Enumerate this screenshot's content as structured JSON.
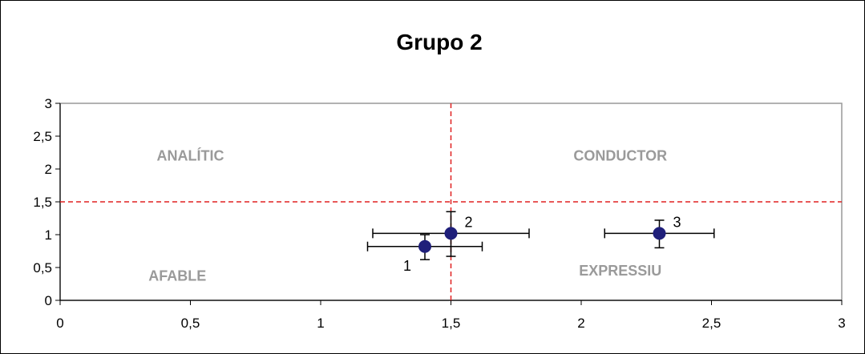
{
  "chart_data": {
    "type": "scatter",
    "title": "Grupo 2",
    "xlabel": "",
    "ylabel": "",
    "xlim": [
      0,
      3
    ],
    "ylim": [
      0,
      3
    ],
    "x_ticks": [
      "0",
      "0,5",
      "1",
      "1,5",
      "2",
      "2,5",
      "3"
    ],
    "y_ticks": [
      "0",
      "0,5",
      "1",
      "1,5",
      "2",
      "2,5",
      "3"
    ],
    "grid": false,
    "reference_lines": {
      "x": 1.5,
      "y": 1.5,
      "color": "#e02020",
      "style": "dashed"
    },
    "quadrant_labels": [
      {
        "text": "ANALÍTIC",
        "x": 0.5,
        "y": 2.2
      },
      {
        "text": "CONDUCTOR",
        "x": 2.15,
        "y": 2.2
      },
      {
        "text": "AFABLE",
        "x": 0.45,
        "y": 0.37
      },
      {
        "text": "EXPRESSIU",
        "x": 2.15,
        "y": 0.45
      }
    ],
    "points": [
      {
        "label": "1",
        "x": 1.4,
        "y": 0.82,
        "x_err": [
          1.18,
          1.62
        ],
        "y_err": [
          0.62,
          1.0
        ]
      },
      {
        "label": "2",
        "x": 1.5,
        "y": 1.02,
        "x_err": [
          1.2,
          1.8
        ],
        "y_err": [
          0.67,
          1.35
        ]
      },
      {
        "label": "3",
        "x": 2.3,
        "y": 1.02,
        "x_err": [
          2.09,
          2.51
        ],
        "y_err": [
          0.8,
          1.22
        ]
      }
    ],
    "marker_color": "#1f1f7a"
  }
}
